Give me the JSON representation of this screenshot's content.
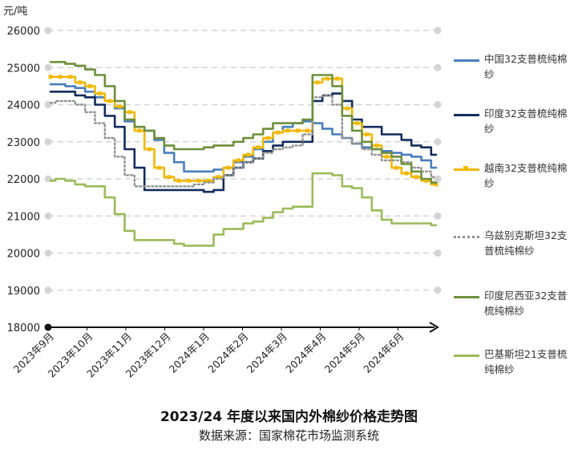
{
  "chart_data": {
    "type": "line",
    "title": "2023/24 年度以来国内外棉纱价格走势图",
    "source": "数据来源：国家棉花市场监测系统",
    "y_unit": "元/吨",
    "ylim": [
      18000,
      26000
    ],
    "yticks": [
      "26000",
      "25000",
      "24000",
      "23000",
      "22000",
      "21000",
      "20000",
      "19000",
      "18000"
    ],
    "x_labels": [
      "2023年9月",
      "2023年10月",
      "2023年11月",
      "2023年12月",
      "2024年1月",
      "2024年2月",
      "2024年3月",
      "2024年4月",
      "2024年5月",
      "2024年6月"
    ],
    "grid": true,
    "legend_position": "right",
    "series": [
      {
        "name": "中国32支普梳纯棉纱",
        "color": "#4a7ebb",
        "style": "solid",
        "values": [
          24550,
          24550,
          24500,
          24450,
          24350,
          24200,
          24100,
          23900,
          23550,
          23400,
          23300,
          23050,
          22700,
          22450,
          22200,
          22200,
          22200,
          22250,
          22300,
          22450,
          22600,
          22800,
          23000,
          23250,
          23400,
          23500,
          23550,
          23500,
          23350,
          23200,
          23100,
          22950,
          22850,
          22800,
          22750,
          22700,
          22650,
          22600,
          22500,
          22300
        ]
      },
      {
        "name": "印度32支普梳纯棉纱",
        "color": "#142c5c",
        "style": "solid",
        "values": [
          24350,
          24350,
          24350,
          24250,
          24200,
          24000,
          23700,
          23400,
          22800,
          22300,
          21700,
          21700,
          21700,
          21700,
          21700,
          21700,
          21650,
          21700,
          22100,
          22300,
          22450,
          22550,
          22750,
          22900,
          23000,
          23000,
          23000,
          24100,
          24250,
          24300,
          24100,
          23600,
          23400,
          23400,
          23200,
          23200,
          23050,
          22900,
          22850,
          22650
        ]
      },
      {
        "name": "越南32支普梳纯棉纱",
        "color": "#f0b800",
        "style": "solid-marker",
        "values": [
          24750,
          24750,
          24750,
          24600,
          24500,
          24300,
          24100,
          23950,
          23800,
          23300,
          22800,
          22300,
          22050,
          21950,
          21950,
          21950,
          21950,
          22050,
          22300,
          22500,
          22650,
          22850,
          23100,
          23250,
          23300,
          23300,
          23300,
          24600,
          24700,
          24700,
          23900,
          23500,
          23200,
          22900,
          22600,
          22300,
          22150,
          22050,
          21950,
          21850
        ]
      },
      {
        "name": "乌兹别克斯坦32支普梳纯棉纱",
        "color": "#909090",
        "style": "dotted",
        "values": [
          24050,
          24100,
          24100,
          24000,
          23800,
          23500,
          23100,
          22600,
          22100,
          21800,
          21800,
          21800,
          21800,
          21800,
          21800,
          21850,
          21900,
          22000,
          22100,
          22300,
          22450,
          22550,
          22700,
          22800,
          22850,
          22900,
          23200,
          24200,
          24250,
          24000,
          23100,
          22950,
          22800,
          22650,
          22500,
          22500,
          22450,
          22300,
          22200,
          22050
        ]
      },
      {
        "name": "印度尼西亚32支普梳纯棉纱",
        "color": "#6f8f3c",
        "style": "solid",
        "values": [
          25150,
          25150,
          25100,
          25050,
          24950,
          24800,
          24500,
          24100,
          23600,
          23400,
          23300,
          23100,
          22900,
          22800,
          22800,
          22800,
          22850,
          22900,
          22900,
          23000,
          23100,
          23200,
          23350,
          23500,
          23500,
          23500,
          23600,
          24800,
          24800,
          24500,
          23700,
          23300,
          23000,
          22800,
          22700,
          22600,
          22400,
          22200,
          22000,
          21900
        ]
      },
      {
        "name": "巴基斯坦21支普梳纯棉纱",
        "color": "#9bbb59",
        "style": "solid",
        "values": [
          21950,
          22000,
          21950,
          21850,
          21800,
          21800,
          21500,
          21050,
          20600,
          20350,
          20350,
          20350,
          20350,
          20250,
          20200,
          20200,
          20200,
          20500,
          20650,
          20650,
          20800,
          20850,
          20950,
          21100,
          21200,
          21250,
          21250,
          22150,
          22150,
          22100,
          21800,
          21750,
          21500,
          21150,
          20900,
          20800,
          20800,
          20800,
          20800,
          20750
        ]
      }
    ]
  }
}
